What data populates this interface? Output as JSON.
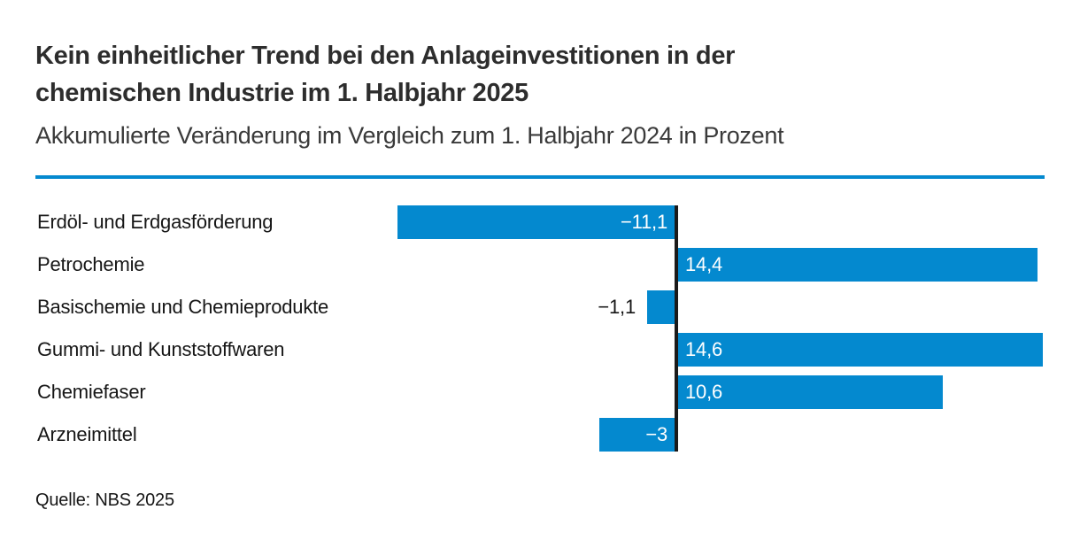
{
  "page": {
    "title_lines": [
      "Kein einheitlicher Trend bei den Anlageinvestitionen in der",
      "chemischen Industrie im 1. Halbjahr 2025"
    ],
    "subtitle": "Akkumulierte Veränderung im Vergleich zum 1. Halbjahr 2024 in Prozent",
    "source": "Quelle: NBS 2025"
  },
  "colors": {
    "accent_blue": "#0489cf",
    "axis": "#1a1a1a",
    "title_text": "#2d2d2d",
    "body_text": "#161616",
    "bar_value_text": "#ffffff"
  },
  "chart_data": {
    "type": "bar",
    "orientation": "horizontal",
    "title": "Kein einheitlicher Trend bei den Anlageinvestitionen in der chemischen Industrie im 1. Halbjahr 2025",
    "subtitle": "Akkumulierte Veränderung im Vergleich zum 1. Halbjahr 2024 in Prozent",
    "source": "Quelle: NBS 2025",
    "unit": "Prozent",
    "categories": [
      "Erdöl- und Erdgasförderung",
      "Petrochemie",
      "Basischemie und Chemieprodukte",
      "Gummi- und Kunststoffwaren",
      "Chemiefaser",
      "Arzneimittel"
    ],
    "values": [
      -11.1,
      14.4,
      -1.1,
      14.6,
      10.6,
      -3
    ],
    "value_labels": [
      "−11,1",
      "14,4",
      "−1,1",
      "14,6",
      "10,6",
      "−3"
    ],
    "label_placements": [
      "inside",
      "inside",
      "outside",
      "inside",
      "inside",
      "inside"
    ],
    "xlim": [
      -11.1,
      14.6
    ],
    "grid": false,
    "legend": false,
    "bar_color": "#0489cf"
  }
}
